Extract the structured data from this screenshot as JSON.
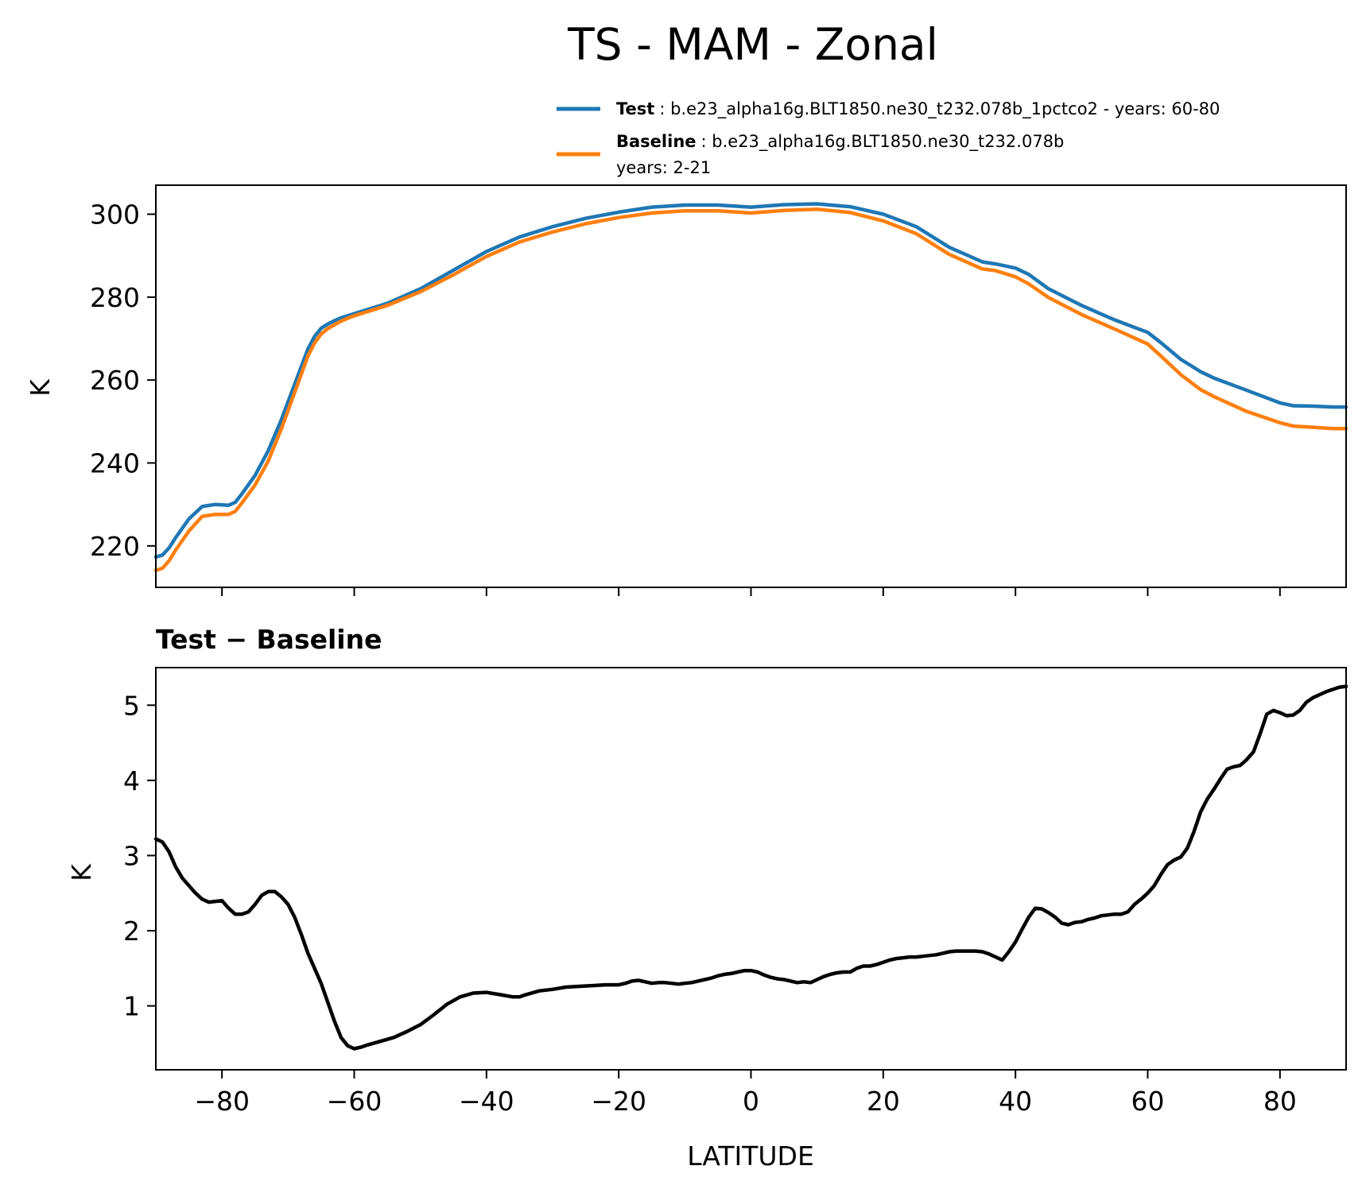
{
  "chart_data": {
    "title": "TS - MAM - Zonal",
    "xlabel": "LATITUDE",
    "xlim": [
      -90,
      90
    ],
    "xticks": [
      -80,
      -60,
      -40,
      -20,
      0,
      20,
      40,
      60,
      80
    ],
    "xtick_labels": [
      "−80",
      "−60",
      "−40",
      "−20",
      "0",
      "20",
      "40",
      "60",
      "80"
    ],
    "legend": {
      "test": {
        "bold": "Test",
        "text": ": b.e23_alpha16g.BLT1850.ne30_t232.078b_1pctco2 - years: 60-80",
        "color": "#1f77b4"
      },
      "baseline": {
        "bold": "Baseline",
        "text": ": b.e23_alpha16g.BLT1850.ne30_t232.078b",
        "text2": "years: 2-21",
        "color": "#ff7f0e"
      }
    },
    "top": {
      "type": "line",
      "ylabel": "K",
      "ylim": [
        210,
        307
      ],
      "yticks": [
        220,
        240,
        260,
        280,
        300
      ],
      "ytick_labels": [
        "220",
        "240",
        "260",
        "280",
        "300"
      ],
      "latitudes": [
        -90,
        -89,
        -88,
        -87,
        -85,
        -83,
        -81,
        -79,
        -78,
        -77,
        -75,
        -73,
        -71,
        -69,
        -67,
        -66,
        -65,
        -64,
        -63,
        -62,
        -61,
        -60,
        -55,
        -50,
        -45,
        -40,
        -35,
        -30,
        -25,
        -20,
        -15,
        -10,
        -5,
        0,
        5,
        10,
        15,
        20,
        25,
        30,
        35,
        37,
        40,
        42,
        45,
        50,
        55,
        60,
        62,
        65,
        68,
        70,
        75,
        80,
        82,
        85,
        88,
        90
      ],
      "series": [
        {
          "name": "Test",
          "color": "#1f77b4",
          "values": [
            217.3,
            217.8,
            219.5,
            222.0,
            226.5,
            229.5,
            230.0,
            229.8,
            230.5,
            232.5,
            237.0,
            243.0,
            250.5,
            259.0,
            267.5,
            270.5,
            272.5,
            273.5,
            274.3,
            275.0,
            275.5,
            276.0,
            278.5,
            282.0,
            286.5,
            291.0,
            294.5,
            297.0,
            299.0,
            300.5,
            301.7,
            302.2,
            302.2,
            301.7,
            302.3,
            302.5,
            301.8,
            300.0,
            297.0,
            292.0,
            288.5,
            288.0,
            287.0,
            285.5,
            282.0,
            278.0,
            274.5,
            271.5,
            269.0,
            265.0,
            262.0,
            260.5,
            257.5,
            254.5,
            253.8,
            253.7,
            253.5,
            253.5
          ]
        },
        {
          "name": "Baseline",
          "color": "#ff7f0e",
          "values": [
            214.1,
            214.6,
            216.4,
            219.0,
            223.6,
            227.1,
            227.6,
            227.6,
            228.3,
            230.3,
            234.7,
            240.5,
            248.3,
            257.0,
            265.8,
            268.9,
            271.1,
            272.4,
            273.3,
            274.2,
            274.9,
            275.5,
            278.0,
            281.3,
            285.4,
            289.8,
            293.3,
            295.7,
            297.7,
            299.2,
            300.3,
            300.8,
            300.8,
            300.3,
            300.9,
            301.2,
            300.4,
            298.4,
            295.3,
            290.3,
            286.8,
            286.4,
            284.9,
            283.2,
            279.9,
            275.8,
            272.3,
            268.7,
            265.8,
            261.3,
            257.7,
            256.0,
            252.4,
            249.7,
            248.9,
            248.6,
            248.3,
            248.3
          ]
        }
      ]
    },
    "bottom": {
      "type": "line",
      "title": "Test − Baseline",
      "ylabel": "K",
      "ylim": [
        0.15,
        5.5
      ],
      "yticks": [
        1,
        2,
        3,
        4,
        5
      ],
      "ytick_labels": [
        "1",
        "2",
        "3",
        "4",
        "5"
      ],
      "series": [
        {
          "name": "Test − Baseline",
          "color": "#000000",
          "latitudes": [
            -90,
            -89,
            -88,
            -87,
            -86,
            -85,
            -84,
            -83,
            -82,
            -81,
            -80,
            -79,
            -78,
            -77,
            -76,
            -75,
            -74,
            -73,
            -72,
            -71,
            -70,
            -69,
            -68,
            -67,
            -66,
            -65,
            -64,
            -63,
            -62,
            -61,
            -60,
            -59,
            -58,
            -56,
            -54,
            -52,
            -50,
            -48,
            -46,
            -44,
            -42,
            -40,
            -38,
            -36,
            -35,
            -34,
            -32,
            -30,
            -28,
            -26,
            -24,
            -22,
            -20,
            -19,
            -18,
            -17,
            -16,
            -15,
            -14,
            -13,
            -12,
            -11,
            -10,
            -9,
            -8,
            -7,
            -6,
            -5,
            -4,
            -3,
            -2,
            -1,
            0,
            1,
            2,
            3,
            4,
            5,
            6,
            7,
            8,
            9,
            10,
            11,
            12,
            13,
            14,
            15,
            16,
            17,
            18,
            19,
            20,
            21,
            22,
            23,
            24,
            25,
            26,
            27,
            28,
            29,
            30,
            31,
            32,
            33,
            34,
            35,
            36,
            37,
            38,
            39,
            40,
            41,
            42,
            43,
            44,
            45,
            46,
            47,
            48,
            49,
            50,
            51,
            52,
            53,
            54,
            55,
            56,
            57,
            58,
            59,
            60,
            61,
            62,
            63,
            64,
            65,
            66,
            67,
            68,
            69,
            70,
            71,
            72,
            73,
            74,
            75,
            76,
            77,
            78,
            79,
            80,
            81,
            82,
            83,
            84,
            85,
            86,
            87,
            88,
            89,
            90
          ],
          "values": [
            3.22,
            3.18,
            3.05,
            2.85,
            2.7,
            2.6,
            2.5,
            2.42,
            2.38,
            2.39,
            2.4,
            2.3,
            2.22,
            2.22,
            2.25,
            2.35,
            2.47,
            2.52,
            2.52,
            2.45,
            2.35,
            2.18,
            1.95,
            1.7,
            1.5,
            1.3,
            1.05,
            0.8,
            0.58,
            0.47,
            0.43,
            0.45,
            0.48,
            0.53,
            0.58,
            0.66,
            0.75,
            0.88,
            1.02,
            1.12,
            1.17,
            1.18,
            1.15,
            1.12,
            1.12,
            1.15,
            1.2,
            1.22,
            1.25,
            1.26,
            1.27,
            1.28,
            1.28,
            1.3,
            1.33,
            1.34,
            1.32,
            1.3,
            1.31,
            1.31,
            1.3,
            1.29,
            1.3,
            1.31,
            1.33,
            1.35,
            1.37,
            1.4,
            1.42,
            1.43,
            1.45,
            1.47,
            1.47,
            1.45,
            1.41,
            1.38,
            1.36,
            1.35,
            1.33,
            1.31,
            1.32,
            1.31,
            1.35,
            1.39,
            1.42,
            1.44,
            1.45,
            1.45,
            1.5,
            1.53,
            1.53,
            1.55,
            1.58,
            1.61,
            1.63,
            1.64,
            1.65,
            1.65,
            1.66,
            1.67,
            1.68,
            1.7,
            1.72,
            1.73,
            1.73,
            1.73,
            1.73,
            1.72,
            1.69,
            1.65,
            1.61,
            1.72,
            1.85,
            2.02,
            2.18,
            2.3,
            2.29,
            2.24,
            2.18,
            2.1,
            2.08,
            2.11,
            2.12,
            2.15,
            2.17,
            2.2,
            2.21,
            2.22,
            2.22,
            2.25,
            2.35,
            2.42,
            2.5,
            2.6,
            2.75,
            2.88,
            2.94,
            2.98,
            3.1,
            3.32,
            3.58,
            3.75,
            3.88,
            4.02,
            4.15,
            4.18,
            4.2,
            4.28,
            4.38,
            4.62,
            4.88,
            4.93,
            4.9,
            4.86,
            4.87,
            4.93,
            5.04,
            5.1,
            5.14,
            5.18,
            5.21,
            5.24,
            5.25
          ]
        }
      ]
    }
  }
}
